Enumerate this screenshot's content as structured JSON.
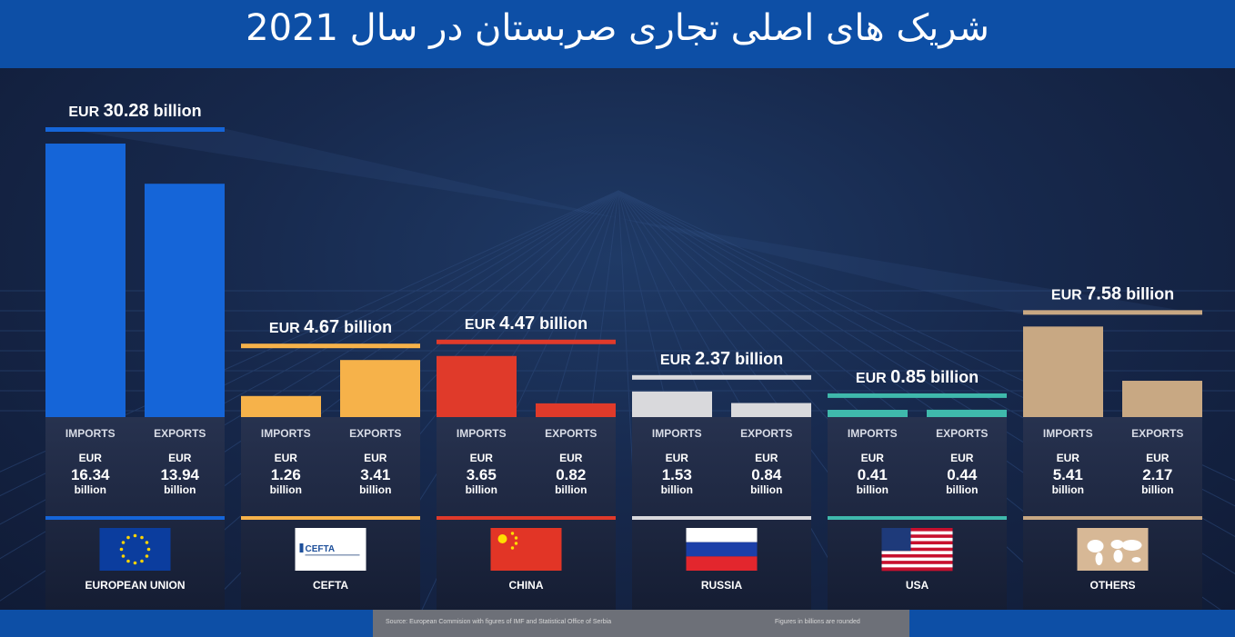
{
  "header": {
    "title": "شریک های اصلی تجاری صربستان در سال 2021"
  },
  "footer": {
    "source": "Source: European Commision with figures of IMF and Statistical Office of Serbia",
    "note": "Figures in billions are rounded"
  },
  "colors": {
    "header_bg": "#0d4fa6",
    "background": "#13203d"
  },
  "chart_data": {
    "type": "bar",
    "series_names": [
      "IMPORTS",
      "EXPORTS"
    ],
    "currency": "EUR",
    "unit": "billion",
    "categories": [
      {
        "name": "EUROPEAN UNION",
        "total": 30.28,
        "total_label": "30.28",
        "imports": 16.34,
        "imports_label": "16.34",
        "exports": 13.94,
        "exports_label": "13.94",
        "color": "#1565d8",
        "icon": "eu-flag-icon"
      },
      {
        "name": "CEFTA",
        "total": 4.67,
        "total_label": "4.67",
        "imports": 1.26,
        "imports_label": "1.26",
        "exports": 3.41,
        "exports_label": "3.41",
        "color": "#f6b24a",
        "icon": "cefta-logo-icon",
        "logo_text": "CEFTA"
      },
      {
        "name": "CHINA",
        "total": 4.47,
        "total_label": "4.47",
        "imports": 3.65,
        "imports_label": "3.65",
        "exports": 0.82,
        "exports_label": "0.82",
        "color": "#e03a2a",
        "icon": "china-flag-icon"
      },
      {
        "name": "RUSSIA",
        "total": 2.37,
        "total_label": "2.37",
        "imports": 1.53,
        "imports_label": "1.53",
        "exports": 0.84,
        "exports_label": "0.84",
        "color": "#d9d9dc",
        "icon": "russia-flag-icon"
      },
      {
        "name": "USA",
        "total": 0.85,
        "total_label": "0.85",
        "imports": 0.41,
        "imports_label": "0.41",
        "exports": 0.44,
        "exports_label": "0.44",
        "color": "#3fb9ac",
        "icon": "usa-flag-icon"
      },
      {
        "name": "OTHERS",
        "total": 7.58,
        "total_label": "7.58",
        "imports": 5.41,
        "imports_label": "5.41",
        "exports": 2.17,
        "exports_label": "2.17",
        "color": "#c8a883",
        "icon": "world-map-icon"
      }
    ],
    "ylim": [
      0,
      30.28
    ]
  }
}
